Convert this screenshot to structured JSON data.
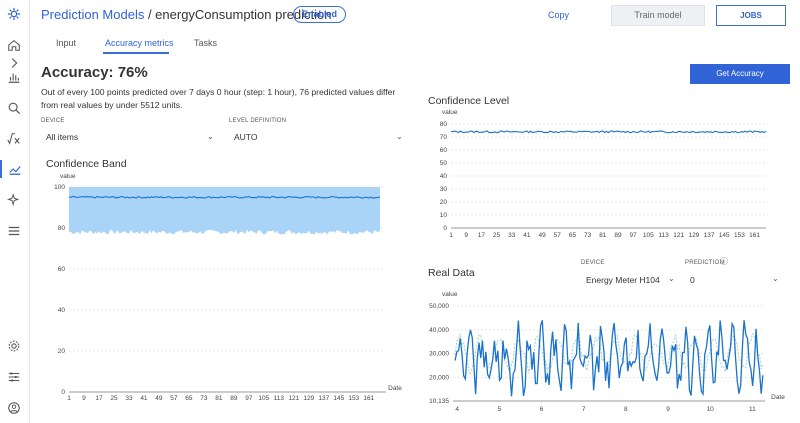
{
  "header": {
    "breadcrumb_root": "Prediction Models",
    "breadcrumb_sep": " / ",
    "model_name": "energyConsumption prediction",
    "status_badge": "Enabled",
    "copy_label": "Copy",
    "train_label": "Train model",
    "jobs_label": "JOBS"
  },
  "tabs": [
    {
      "label": "Input"
    },
    {
      "label": "Accuracy metrics",
      "active": true
    },
    {
      "label": "Tasks"
    }
  ],
  "accuracy": {
    "title": "Accuracy: 76%",
    "description": "Out of every 100 points predicted over 7 days 0 hour (step: 1 hour), 76 predicted values differ from real values by under 5512 units.",
    "get_accuracy_label": "Get Accuracy"
  },
  "filters": {
    "device_label": "DEVICE",
    "device_value": "All items",
    "level_label": "LEVEL DEFINITION",
    "level_value": "AUTO"
  },
  "real_data_filters": {
    "device_label": "DEVICE",
    "device_value": "Energy Meter H104",
    "prediction_label": "PREDICTION",
    "prediction_value": "0"
  },
  "icons": [
    "logo-icon",
    "expand-icon",
    "home-icon",
    "bar-chart-icon",
    "search-analytics-icon",
    "formula-icon",
    "trend-icon",
    "sparkle-icon",
    "menu-icon",
    "settings-icon",
    "sliders-icon",
    "user-icon",
    "info-icon",
    "close-icon"
  ],
  "colors": {
    "accent": "#2f63d6",
    "band": "#a9d3f7",
    "line": "#1b72cc",
    "predicted": "#9fd3c7"
  },
  "chart_data": [
    {
      "type": "area",
      "title": "Confidence Band",
      "ylabel": "value",
      "xlabel": "Date",
      "ylim": [
        0,
        100
      ],
      "yticks": [
        0,
        20,
        40,
        60,
        80,
        100
      ],
      "xticks": [
        1,
        9,
        17,
        25,
        33,
        41,
        49,
        57,
        65,
        73,
        81,
        89,
        97,
        105,
        113,
        121,
        129,
        137,
        145,
        153,
        161
      ],
      "series": [
        {
          "role": "band_upper",
          "value": 100
        },
        {
          "role": "band_lower",
          "approx": 78
        },
        {
          "role": "line",
          "approx": 95
        }
      ]
    },
    {
      "type": "line",
      "title": "Confidence Level",
      "ylabel": "value",
      "ylim": [
        0,
        80
      ],
      "yticks": [
        0,
        10,
        20,
        30,
        40,
        50,
        60,
        70,
        80
      ],
      "xticks": [
        1,
        9,
        17,
        25,
        33,
        41,
        49,
        57,
        65,
        73,
        81,
        89,
        97,
        105,
        113,
        121,
        129,
        137,
        145,
        153,
        161
      ],
      "series": [
        {
          "approx": 74
        }
      ]
    },
    {
      "type": "line",
      "title": "Real Data",
      "ylabel": "value",
      "xlabel": "Date",
      "ylim": [
        10135,
        50000
      ],
      "yticks": [
        10135,
        20000,
        30000,
        40000,
        50000
      ],
      "ytick_labels": [
        "10,135",
        "20,000",
        "30,000",
        "40,000",
        "50,000"
      ],
      "xticks": [
        4,
        5,
        6,
        7,
        8,
        9,
        10,
        11
      ],
      "series": [
        {
          "role": "real",
          "range": [
            11000,
            44000
          ]
        },
        {
          "role": "predicted",
          "range": [
            20000,
            40000
          ]
        }
      ]
    }
  ]
}
